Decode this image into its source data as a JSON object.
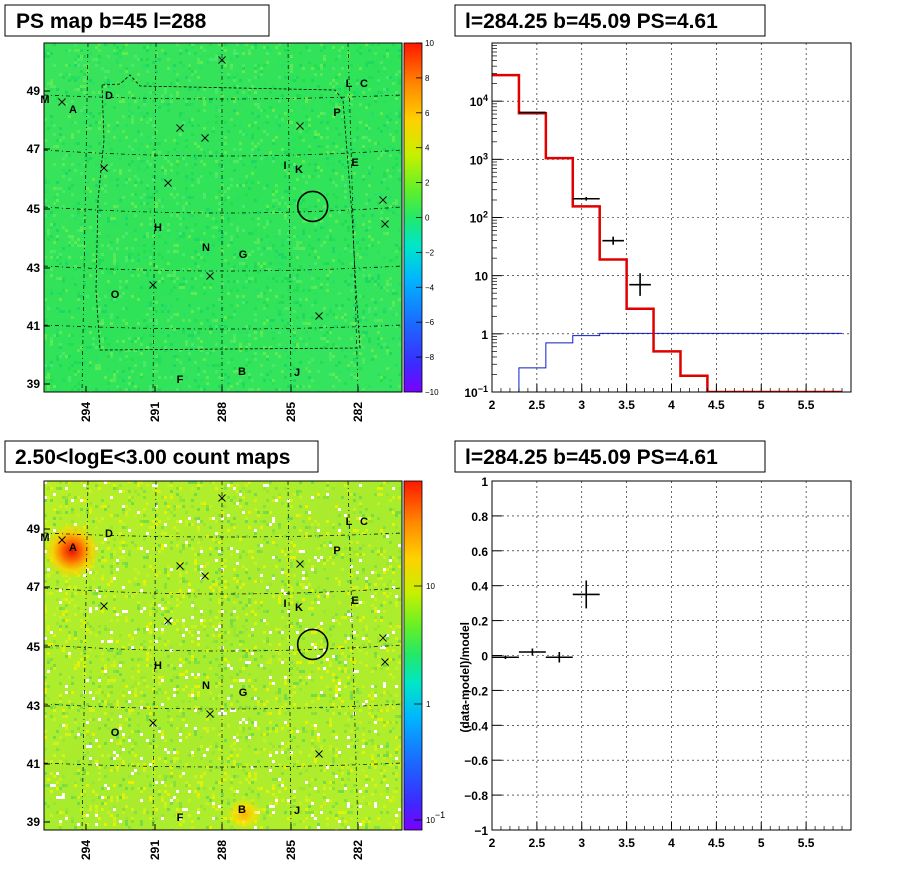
{
  "chart_data": [
    {
      "type": "heatmap",
      "title": "PS map b=45 l=288",
      "x_ticks": [
        "294",
        "291",
        "288",
        "285",
        "282"
      ],
      "y_ticks": [
        "49",
        "47",
        "45",
        "43",
        "41",
        "39"
      ],
      "colorbar_ticks": [
        "10",
        "8",
        "6",
        "4",
        "2",
        "0",
        "−2",
        "−4",
        "−6",
        "−8",
        "−10"
      ],
      "zlim": [
        -10,
        10
      ],
      "sources": [
        "M",
        "A",
        "D",
        "L",
        "C",
        "P",
        "I",
        "K",
        "E",
        "H",
        "N",
        "G",
        "O",
        "F",
        "B",
        "J"
      ],
      "crosses": 12,
      "circle": {
        "l": 284.25,
        "b": 45.09
      }
    },
    {
      "type": "line",
      "title": "l=284.25 b=45.09 PS=4.61",
      "y_scale": "log",
      "xlim": [
        2,
        6
      ],
      "ylim": [
        0.1,
        100000
      ],
      "x_ticks": [
        "2",
        "2.5",
        "3",
        "3.5",
        "4",
        "4.5",
        "5",
        "5.5"
      ],
      "y_ticks": [
        "10^4",
        "10^3",
        "10^2",
        "10",
        "1",
        "10^−1"
      ],
      "model_red": {
        "edges": [
          2.0,
          2.3,
          2.6,
          2.9,
          3.2,
          3.5,
          3.8,
          4.1,
          4.4,
          5.9
        ],
        "values": [
          28000,
          6200,
          1050,
          155,
          19,
          2.7,
          0.5,
          0.19,
          0.1
        ]
      },
      "model_blue": {
        "edges": [
          2.0,
          2.3,
          2.6,
          2.9,
          3.2,
          5.9
        ],
        "values": [
          0.1,
          0.26,
          0.7,
          0.93,
          1.02
        ]
      },
      "data_points": [
        {
          "x": 2.45,
          "y": 6400,
          "xerr": 0.15,
          "ylo": 6200,
          "yhi": 6600
        },
        {
          "x": 3.05,
          "y": 210,
          "xerr": 0.15,
          "ylo": 195,
          "yhi": 225
        },
        {
          "x": 3.35,
          "y": 40,
          "xerr": 0.12,
          "ylo": 34,
          "yhi": 47
        },
        {
          "x": 3.65,
          "y": 7,
          "xerr": 0.12,
          "ylo": 4.5,
          "yhi": 11
        }
      ]
    },
    {
      "type": "heatmap",
      "title": "2.50<logE<3.00 count maps",
      "x_ticks": [
        "294",
        "291",
        "288",
        "285",
        "282"
      ],
      "y_ticks": [
        "49",
        "47",
        "45",
        "43",
        "41",
        "39"
      ],
      "colorbar_ticks": [
        "10",
        "1",
        "10^−1"
      ],
      "z_scale": "log",
      "sources": [
        "M",
        "A",
        "D",
        "L",
        "C",
        "P",
        "I",
        "K",
        "E",
        "H",
        "N",
        "G",
        "O",
        "F",
        "B",
        "J"
      ],
      "crosses": 12,
      "circle": {
        "l": 284.25,
        "b": 45.09
      }
    },
    {
      "type": "scatter",
      "title": "l=284.25 b=45.09 PS=4.61",
      "ylabel": "(data-model)/model",
      "xlim": [
        2,
        6
      ],
      "ylim": [
        -1,
        1
      ],
      "x_ticks": [
        "2",
        "2.5",
        "3",
        "3.5",
        "4",
        "4.5",
        "5",
        "5.5"
      ],
      "y_ticks": [
        "1",
        "0.8",
        "0.6",
        "0.4",
        "0.2",
        "0",
        "−0.2",
        "−0.4",
        "−0.6",
        "−0.8",
        "−1"
      ],
      "points": [
        {
          "x": 2.15,
          "y": -0.01,
          "xerr": 0.15,
          "yerr": 0.01
        },
        {
          "x": 2.45,
          "y": 0.02,
          "xerr": 0.15,
          "yerr": 0.02
        },
        {
          "x": 2.75,
          "y": -0.01,
          "xerr": 0.15,
          "yerr": 0.03
        },
        {
          "x": 3.05,
          "y": 0.35,
          "xerr": 0.15,
          "yerr": 0.08
        }
      ]
    }
  ]
}
